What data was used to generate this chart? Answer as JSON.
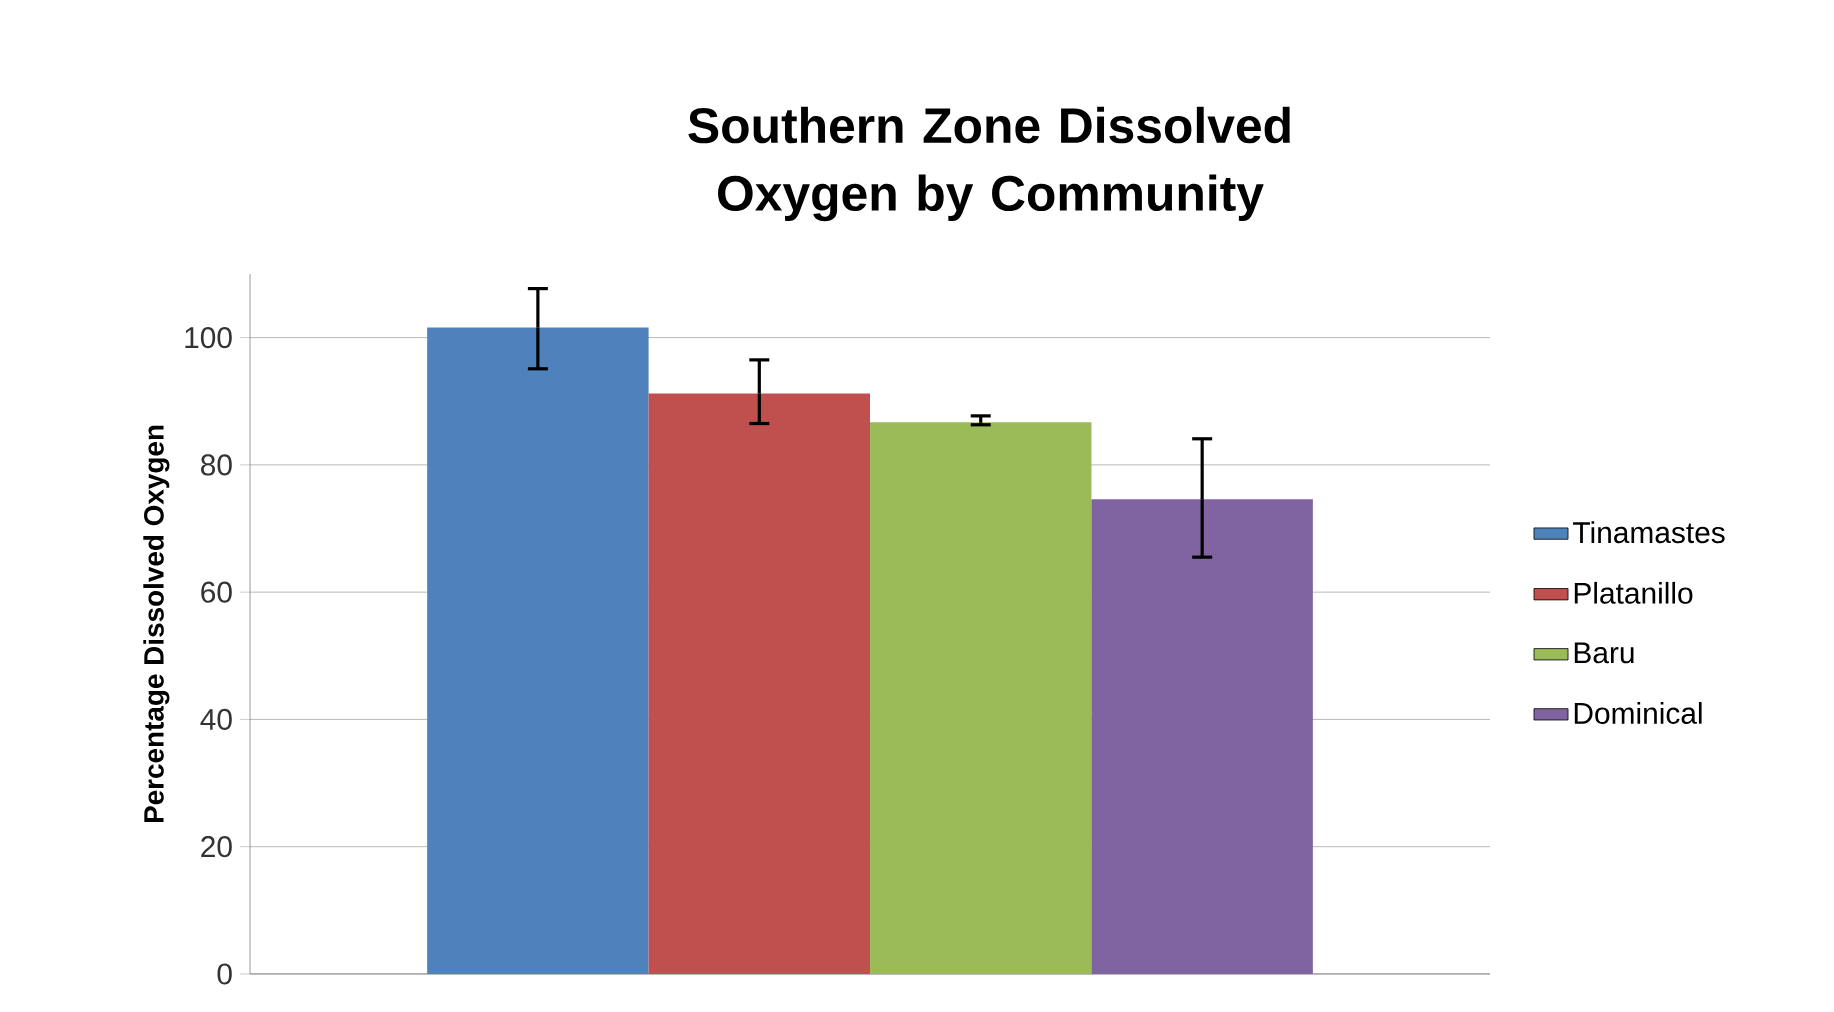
{
  "chart_data": {
    "type": "bar",
    "title": "Southern Zone Dissolved Oxygen by Community",
    "ylabel": "Percentage Dissolved Oxygen",
    "categories": [
      null
    ],
    "series": [
      {
        "name": "Tinamastes",
        "color": "#4f81bd",
        "values": [
          101.6
        ],
        "errors": [
          [
            95.1,
            107.7
          ]
        ]
      },
      {
        "name": "Platanillo",
        "color": "#c0504d",
        "values": [
          91.2
        ],
        "errors": [
          [
            86.5,
            96.5
          ]
        ]
      },
      {
        "name": "Baru",
        "color": "#9bbb59",
        "values": [
          86.7
        ],
        "errors": [
          [
            86.3,
            87.7
          ]
        ]
      },
      {
        "name": "Dominical",
        "color": "#8064a2",
        "values": [
          74.6
        ],
        "errors": [
          [
            65.5,
            84.1
          ]
        ]
      }
    ],
    "ylim": [
      0,
      110
    ],
    "yticks": [
      0,
      20,
      40,
      60,
      80,
      100
    ],
    "grid": "y",
    "legend": "right"
  }
}
